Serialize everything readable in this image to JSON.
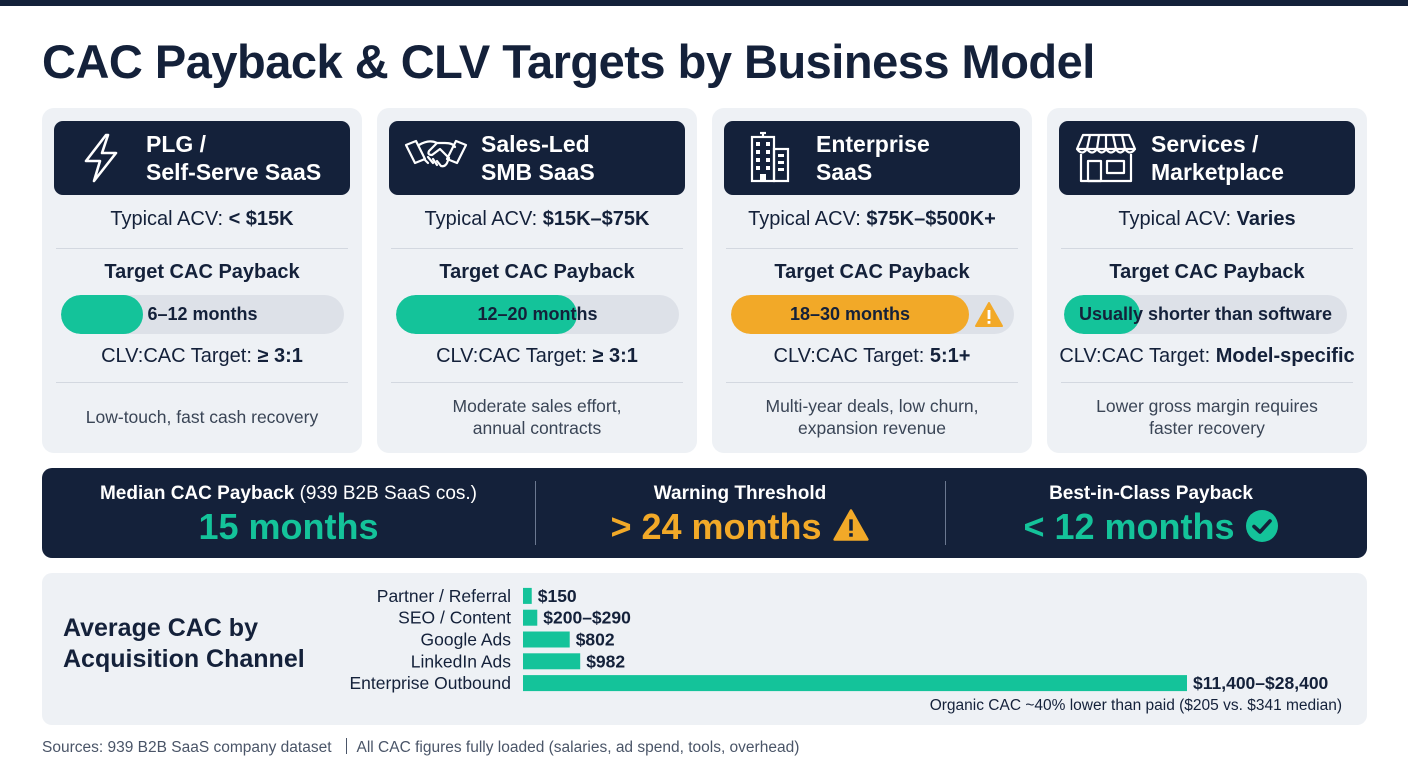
{
  "title": "CAC Payback & CLV Targets by Business Model",
  "labels": {
    "acv_prefix": "Typical ACV:",
    "target_payback": "Target CAC Payback",
    "clv_prefix": "CLV:CAC Target:"
  },
  "colors": {
    "navy": "#14213a",
    "teal": "#14c39a",
    "amber": "#f2a928",
    "track": "#dde1e8",
    "card": "#eef1f5"
  },
  "models": [
    {
      "name_line1": "PLG /",
      "name_line2": "Self-Serve SaaS",
      "icon": "lightning-icon",
      "acv": "< $15K",
      "payback": "6–12 months",
      "payback_fill": 0.29,
      "fill_color": "teal",
      "clv_target": "≥ 3:1",
      "note_line1": "Low-touch, fast cash recovery",
      "note_line2": ""
    },
    {
      "name_line1": "Sales-Led",
      "name_line2": "SMB SaaS",
      "icon": "handshake-icon",
      "acv": "$15K–$75K",
      "payback": "12–20 months",
      "payback_fill": 0.64,
      "fill_color": "teal",
      "clv_target": "≥ 3:1",
      "note_line1": "Moderate sales effort,",
      "note_line2": "annual contracts"
    },
    {
      "name_line1": "Enterprise",
      "name_line2": "SaaS",
      "icon": "building-icon",
      "acv": "$75K–$500K+",
      "payback": "18–30 months",
      "payback_fill": 0.84,
      "fill_color": "amber",
      "warning_icon": "warning-icon",
      "clv_target": "5:1+",
      "note_line1": "Multi-year deals, low churn,",
      "note_line2": "expansion revenue"
    },
    {
      "name_line1": "Services /",
      "name_line2": "Marketplace",
      "icon": "storefront-icon",
      "acv": "Varies",
      "payback": "Usually shorter than software",
      "payback_fill": 0.27,
      "fill_color": "teal",
      "clv_target": "Model-specific",
      "note_line1": "Lower gross margin requires",
      "note_line2": "faster recovery"
    }
  ],
  "benchmarks": {
    "median": {
      "label": "Median CAC Payback",
      "sublabel": "(939 B2B SaaS cos.)",
      "value": "15 months",
      "color": "#14c39a"
    },
    "warning": {
      "label": "Warning Threshold",
      "value": "> 24 months",
      "icon": "warning-icon",
      "color": "#f2a928"
    },
    "best": {
      "label": "Best-in-Class Payback",
      "value": "< 12 months",
      "icon": "check-circle-icon",
      "color": "#14c39a"
    }
  },
  "chart_title_line1": "Average CAC by",
  "chart_title_line2": "Acquisition Channel",
  "chart_note": "Organic CAC ~40% lower than paid ($205 vs. $341 median)",
  "chart_data": {
    "type": "bar",
    "orientation": "horizontal",
    "title": "Average CAC by Acquisition Channel",
    "categories": [
      "Partner / Referral",
      "SEO / Content",
      "Google Ads",
      "LinkedIn Ads",
      "Enterprise Outbound"
    ],
    "values": [
      150,
      245,
      802,
      982,
      11400
    ],
    "value_labels": [
      "$150",
      "$200–$290",
      "$802",
      "$982",
      "$11,400–$28,400"
    ],
    "bar_color": "#14c39a",
    "axis_max": 11400,
    "grid": false
  },
  "sources": "Sources: 939 B2B SaaS company dataset",
  "sources_note": "All CAC figures fully loaded (salaries, ad spend, tools, overhead)"
}
